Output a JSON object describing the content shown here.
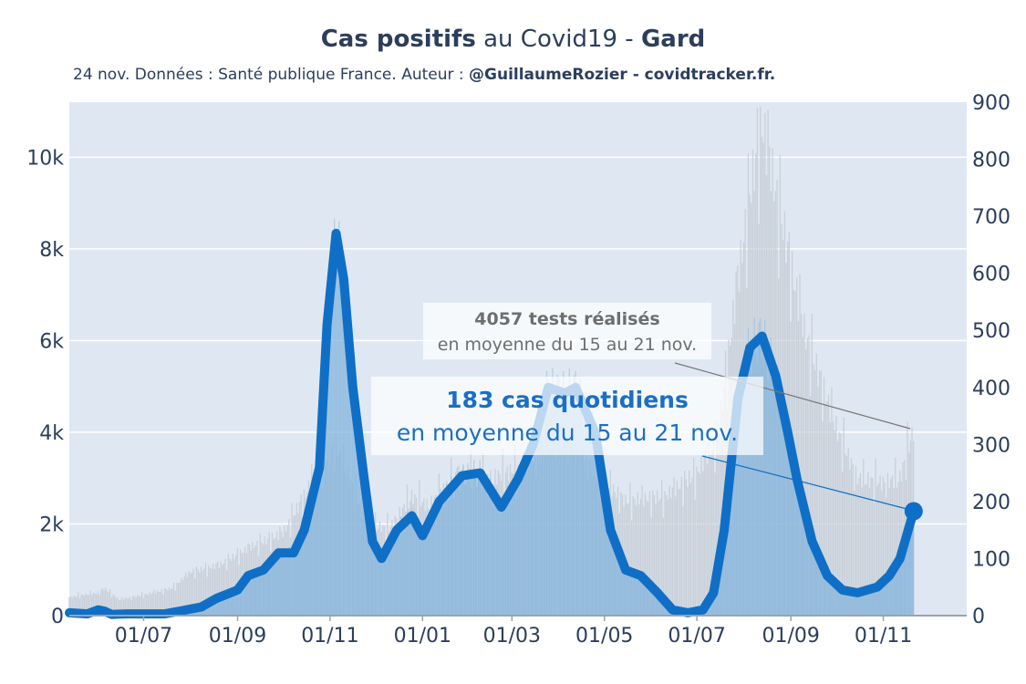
{
  "title": {
    "bold_part": "Cas positifs",
    "middle_part": " au Covid19 - ",
    "region": "Gard"
  },
  "subtitle": {
    "text": "24 nov. Données : Santé publique France. Auteur : ",
    "bold_part": "@GuillaumeRozier - covidtracker.fr."
  },
  "annotations": {
    "tests_line1": "4057 tests réalisés",
    "tests_line2": "en moyenne du 15 au 21 nov.",
    "cases_line1": "183 cas quotidiens",
    "cases_line2": "en moyenne du 15 au 21 nov."
  },
  "colors": {
    "cases_line": "#0f6fc6",
    "cases_fill": "#7fb2dc",
    "tests_fill": "#c9ced6",
    "plot_bg": "#dfe8f2",
    "text": "#2c3e5c"
  },
  "chart_data": {
    "type": "line",
    "x_ticks": [
      "01/07",
      "01/09",
      "01/11",
      "01/01",
      "01/03",
      "01/05",
      "01/07",
      "01/09",
      "01/11"
    ],
    "y_left": {
      "ticks": [
        "0",
        "2k",
        "4k",
        "6k",
        "8k",
        "10k"
      ],
      "range": [
        0,
        11200
      ]
    },
    "y_right": {
      "ticks": [
        "0",
        "100",
        "200",
        "300",
        "400",
        "500",
        "600",
        "700",
        "800",
        "900"
      ],
      "range": [
        0,
        900
      ]
    },
    "x_range": [
      "2020-05-13",
      "2021-12-26"
    ],
    "series": [
      {
        "role": "cases_7day_avg",
        "axis": "right",
        "points": [
          [
            "2020-05-13",
            5
          ],
          [
            "2020-05-25",
            3
          ],
          [
            "2020-06-01",
            10
          ],
          [
            "2020-06-05",
            8
          ],
          [
            "2020-06-10",
            2
          ],
          [
            "2020-06-20",
            3
          ],
          [
            "2020-07-01",
            3
          ],
          [
            "2020-07-15",
            3
          ],
          [
            "2020-07-25",
            8
          ],
          [
            "2020-08-08",
            15
          ],
          [
            "2020-08-18",
            30
          ],
          [
            "2020-09-01",
            45
          ],
          [
            "2020-09-08",
            70
          ],
          [
            "2020-09-18",
            80
          ],
          [
            "2020-09-28",
            110
          ],
          [
            "2020-10-08",
            110
          ],
          [
            "2020-10-15",
            150
          ],
          [
            "2020-10-25",
            260
          ],
          [
            "2020-10-30",
            510
          ],
          [
            "2020-11-05",
            670
          ],
          [
            "2020-11-10",
            590
          ],
          [
            "2020-11-16",
            400
          ],
          [
            "2020-11-23",
            250
          ],
          [
            "2020-11-29",
            130
          ],
          [
            "2020-12-05",
            100
          ],
          [
            "2020-12-15",
            150
          ],
          [
            "2020-12-25",
            175
          ],
          [
            "2021-01-01",
            140
          ],
          [
            "2021-01-12",
            200
          ],
          [
            "2021-01-27",
            245
          ],
          [
            "2021-02-08",
            250
          ],
          [
            "2021-02-22",
            190
          ],
          [
            "2021-03-05",
            240
          ],
          [
            "2021-03-15",
            300
          ],
          [
            "2021-03-25",
            400
          ],
          [
            "2021-04-05",
            390
          ],
          [
            "2021-04-12",
            400
          ],
          [
            "2021-04-25",
            320
          ],
          [
            "2021-05-05",
            150
          ],
          [
            "2021-05-15",
            80
          ],
          [
            "2021-05-25",
            70
          ],
          [
            "2021-06-05",
            40
          ],
          [
            "2021-06-15",
            10
          ],
          [
            "2021-06-25",
            5
          ],
          [
            "2021-07-05",
            10
          ],
          [
            "2021-07-12",
            40
          ],
          [
            "2021-07-19",
            150
          ],
          [
            "2021-07-28",
            380
          ],
          [
            "2021-08-05",
            470
          ],
          [
            "2021-08-13",
            490
          ],
          [
            "2021-08-22",
            420
          ],
          [
            "2021-08-30",
            320
          ],
          [
            "2021-09-05",
            240
          ],
          [
            "2021-09-15",
            130
          ],
          [
            "2021-09-25",
            70
          ],
          [
            "2021-10-05",
            45
          ],
          [
            "2021-10-15",
            40
          ],
          [
            "2021-10-28",
            50
          ],
          [
            "2021-11-05",
            70
          ],
          [
            "2021-11-12",
            100
          ],
          [
            "2021-11-21",
            183
          ]
        ]
      },
      {
        "role": "tests_7day_avg",
        "axis": "left",
        "points": [
          [
            "2020-05-13",
            400
          ],
          [
            "2020-06-01",
            500
          ],
          [
            "2020-06-05",
            600
          ],
          [
            "2020-06-15",
            350
          ],
          [
            "2020-07-01",
            450
          ],
          [
            "2020-07-20",
            600
          ],
          [
            "2020-08-01",
            950
          ],
          [
            "2020-08-20",
            1100
          ],
          [
            "2020-09-10",
            1500
          ],
          [
            "2020-10-01",
            1800
          ],
          [
            "2020-10-15",
            2600
          ],
          [
            "2020-10-25",
            3300
          ],
          [
            "2020-11-05",
            3700
          ],
          [
            "2020-11-15",
            2900
          ],
          [
            "2020-11-25",
            2000
          ],
          [
            "2020-12-10",
            1900
          ],
          [
            "2020-12-25",
            2600
          ],
          [
            "2021-01-05",
            2400
          ],
          [
            "2021-01-25",
            3100
          ],
          [
            "2021-02-15",
            3000
          ],
          [
            "2021-03-05",
            3200
          ],
          [
            "2021-03-25",
            3800
          ],
          [
            "2021-04-10",
            4000
          ],
          [
            "2021-04-25",
            3100
          ],
          [
            "2021-05-15",
            2500
          ],
          [
            "2021-06-10",
            2600
          ],
          [
            "2021-07-01",
            3100
          ],
          [
            "2021-07-15",
            3900
          ],
          [
            "2021-07-25",
            6500
          ],
          [
            "2021-08-05",
            9200
          ],
          [
            "2021-08-13",
            10700
          ],
          [
            "2021-08-25",
            8800
          ],
          [
            "2021-09-10",
            6200
          ],
          [
            "2021-10-01",
            4100
          ],
          [
            "2021-10-15",
            3000
          ],
          [
            "2021-11-01",
            2900
          ],
          [
            "2021-11-12",
            3000
          ],
          [
            "2021-11-21",
            4057
          ]
        ]
      }
    ]
  }
}
